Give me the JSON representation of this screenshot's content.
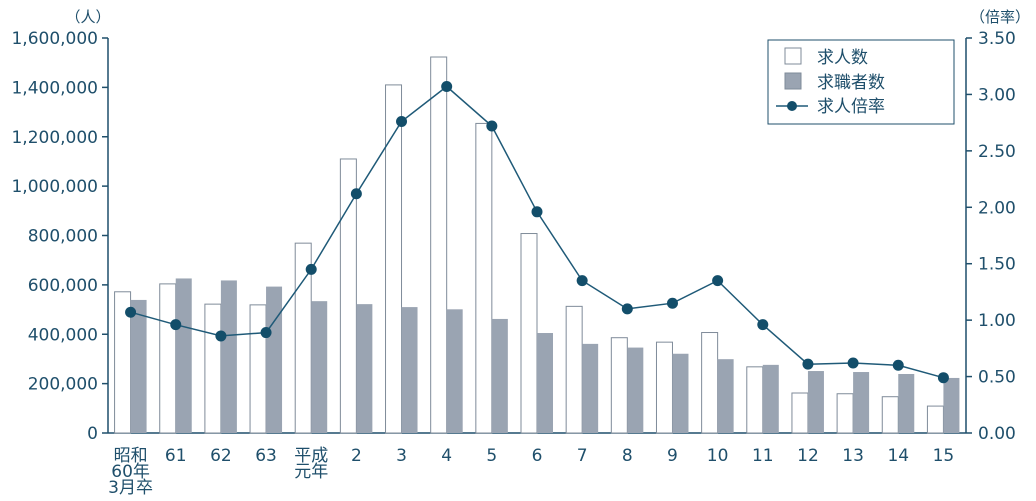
{
  "chart_data": {
    "type": "bar",
    "categories": [
      [
        "昭和",
        "60年",
        "3月卒"
      ],
      [
        "61"
      ],
      [
        "62"
      ],
      [
        "63"
      ],
      [
        "平成",
        "元年"
      ],
      [
        "2"
      ],
      [
        "3"
      ],
      [
        "4"
      ],
      [
        "5"
      ],
      [
        "6"
      ],
      [
        "7"
      ],
      [
        "8"
      ],
      [
        "9"
      ],
      [
        "10"
      ],
      [
        "11"
      ],
      [
        "12"
      ],
      [
        "13"
      ],
      [
        "14"
      ],
      [
        "15"
      ]
    ],
    "series": [
      {
        "name": "求人数",
        "kind": "bar",
        "axis": "left",
        "values": [
          572000,
          604000,
          522000,
          519000,
          769000,
          1110000,
          1410000,
          1523000,
          1254000,
          808000,
          513000,
          386000,
          368000,
          407000,
          268000,
          162000,
          159000,
          147000,
          109000
        ]
      },
      {
        "name": "求職者数",
        "kind": "bar",
        "axis": "left",
        "values": [
          539000,
          626000,
          618000,
          593000,
          534000,
          522000,
          510000,
          501000,
          462000,
          405000,
          361000,
          346000,
          321000,
          299000,
          276000,
          251000,
          247000,
          239000,
          223000
        ]
      },
      {
        "name": "求人倍率",
        "kind": "line",
        "axis": "right",
        "values": [
          1.07,
          0.96,
          0.86,
          0.89,
          1.45,
          2.12,
          2.76,
          3.07,
          2.72,
          1.96,
          1.35,
          1.1,
          1.15,
          1.35,
          0.96,
          0.61,
          0.62,
          0.6,
          0.49
        ]
      }
    ],
    "y_left": {
      "unit": "（人）",
      "lim": [
        0,
        1600000
      ],
      "ticks": [
        "0",
        "200,000",
        "400,000",
        "600,000",
        "800,000",
        "1,000,000",
        "1,200,000",
        "1,400,000",
        "1,600,000"
      ]
    },
    "y_right": {
      "unit": "（倍率）",
      "lim": [
        0,
        3.5
      ],
      "ticks": [
        "0.00",
        "0.50",
        "1.00",
        "1.50",
        "2.00",
        "2.50",
        "3.00",
        "3.50"
      ]
    },
    "legend_position": "top-right",
    "grid": false,
    "colors": {
      "text": "#1f4f6b",
      "axis": "#1f4f6b",
      "bar_outline": "#7f8b99",
      "bar_job_offers_fill": "#ffffff",
      "bar_job_seekers_fill": "#9aa4b2",
      "line": "#1f5a78",
      "marker": "#134e6a"
    }
  }
}
